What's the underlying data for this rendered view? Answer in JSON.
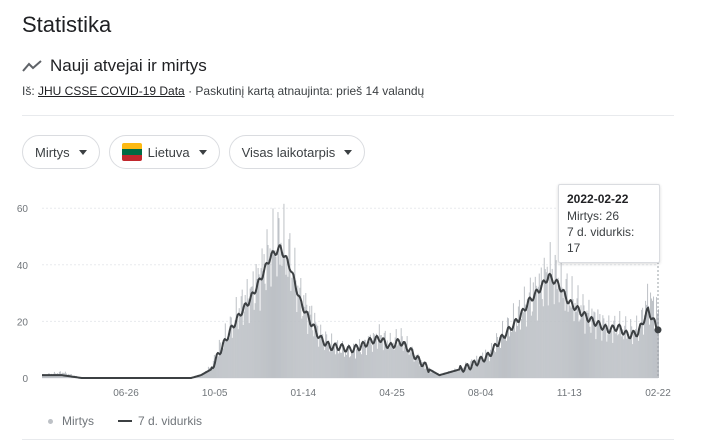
{
  "page": {
    "title": "Statistika"
  },
  "section": {
    "title": "Nauji atvejai ir mirtys"
  },
  "source": {
    "prefix": "Iš:",
    "link": "JHU CSSE COVID-19 Data",
    "separator": "·",
    "updated": "Paskutinį kartą atnaujinta: prieš 14 valandų"
  },
  "filters": {
    "metric": "Mirtys",
    "country": "Lietuva",
    "period": "Visas laikotarpis"
  },
  "icons": {
    "section": "trending-icon",
    "dropdown": "caret-down-icon",
    "flag": "lithuania-flag-icon"
  },
  "colors": {
    "bars": "#bdc1c6",
    "average_line": "#3c4043",
    "flag_yellow": "#fdb913",
    "flag_green": "#006a44",
    "flag_red": "#c1272d"
  },
  "tooltip": {
    "date": "2022-02-22",
    "deaths_label": "Mirtys: 26",
    "avg_label": "7 d. vidurkis: 17"
  },
  "legend": {
    "bars": "Mirtys",
    "line": "7 d. vidurkis"
  },
  "chart_data": {
    "type": "bar",
    "xlabel": "",
    "ylabel": "",
    "ylim": [
      0,
      65
    ],
    "yticks": [
      0,
      20,
      40,
      60
    ],
    "xticks": [
      "06-26",
      "10-05",
      "01-14",
      "04-25",
      "08-04",
      "11-13",
      "02-22"
    ],
    "grid": true,
    "legend": "bottom-left",
    "series": [
      {
        "name": "Mirtys",
        "type": "bar",
        "keyframes": [
          [
            0,
            1
          ],
          [
            20,
            2
          ],
          [
            40,
            0
          ],
          [
            80,
            0
          ],
          [
            120,
            0
          ],
          [
            150,
            0
          ],
          [
            160,
            1
          ],
          [
            170,
            4
          ],
          [
            180,
            12
          ],
          [
            190,
            18
          ],
          [
            200,
            25
          ],
          [
            210,
            30
          ],
          [
            220,
            37
          ],
          [
            230,
            45
          ],
          [
            240,
            48
          ],
          [
            250,
            40
          ],
          [
            260,
            28
          ],
          [
            270,
            22
          ],
          [
            280,
            15
          ],
          [
            290,
            12
          ],
          [
            300,
            10
          ],
          [
            310,
            9
          ],
          [
            320,
            11
          ],
          [
            330,
            13
          ],
          [
            340,
            15
          ],
          [
            350,
            12
          ],
          [
            360,
            14
          ],
          [
            370,
            10
          ],
          [
            380,
            6
          ],
          [
            390,
            3
          ],
          [
            400,
            1
          ],
          [
            410,
            2
          ],
          [
            420,
            3
          ],
          [
            430,
            5
          ],
          [
            440,
            7
          ],
          [
            450,
            9
          ],
          [
            460,
            14
          ],
          [
            470,
            18
          ],
          [
            480,
            22
          ],
          [
            490,
            28
          ],
          [
            500,
            32
          ],
          [
            510,
            38
          ],
          [
            520,
            34
          ],
          [
            530,
            28
          ],
          [
            540,
            25
          ],
          [
            550,
            22
          ],
          [
            560,
            20
          ],
          [
            570,
            17
          ],
          [
            580,
            18
          ],
          [
            590,
            16
          ],
          [
            600,
            17
          ],
          [
            610,
            28
          ],
          [
            620,
            22
          ]
        ]
      },
      {
        "name": "7 d. vidurkis",
        "type": "line",
        "keyframes": [
          [
            0,
            1
          ],
          [
            20,
            1
          ],
          [
            40,
            0
          ],
          [
            80,
            0
          ],
          [
            120,
            0
          ],
          [
            150,
            0
          ],
          [
            160,
            1
          ],
          [
            170,
            3
          ],
          [
            180,
            10
          ],
          [
            190,
            17
          ],
          [
            200,
            23
          ],
          [
            210,
            28
          ],
          [
            220,
            35
          ],
          [
            230,
            43
          ],
          [
            240,
            46
          ],
          [
            250,
            39
          ],
          [
            260,
            27
          ],
          [
            270,
            20
          ],
          [
            280,
            14
          ],
          [
            290,
            11
          ],
          [
            300,
            11
          ],
          [
            310,
            10
          ],
          [
            320,
            11
          ],
          [
            330,
            13
          ],
          [
            340,
            14
          ],
          [
            350,
            11
          ],
          [
            360,
            13
          ],
          [
            370,
            10
          ],
          [
            380,
            6
          ],
          [
            390,
            3
          ],
          [
            400,
            1
          ],
          [
            410,
            2
          ],
          [
            420,
            3
          ],
          [
            430,
            4
          ],
          [
            440,
            6
          ],
          [
            450,
            8
          ],
          [
            460,
            13
          ],
          [
            470,
            17
          ],
          [
            480,
            21
          ],
          [
            490,
            27
          ],
          [
            500,
            31
          ],
          [
            510,
            36
          ],
          [
            520,
            33
          ],
          [
            530,
            27
          ],
          [
            540,
            24
          ],
          [
            550,
            21
          ],
          [
            560,
            19
          ],
          [
            570,
            17
          ],
          [
            580,
            18
          ],
          [
            590,
            15
          ],
          [
            600,
            16
          ],
          [
            610,
            24
          ],
          [
            620,
            17
          ]
        ]
      }
    ],
    "highlight": {
      "date": "2022-02-22",
      "deaths": 26,
      "avg": 17
    }
  }
}
